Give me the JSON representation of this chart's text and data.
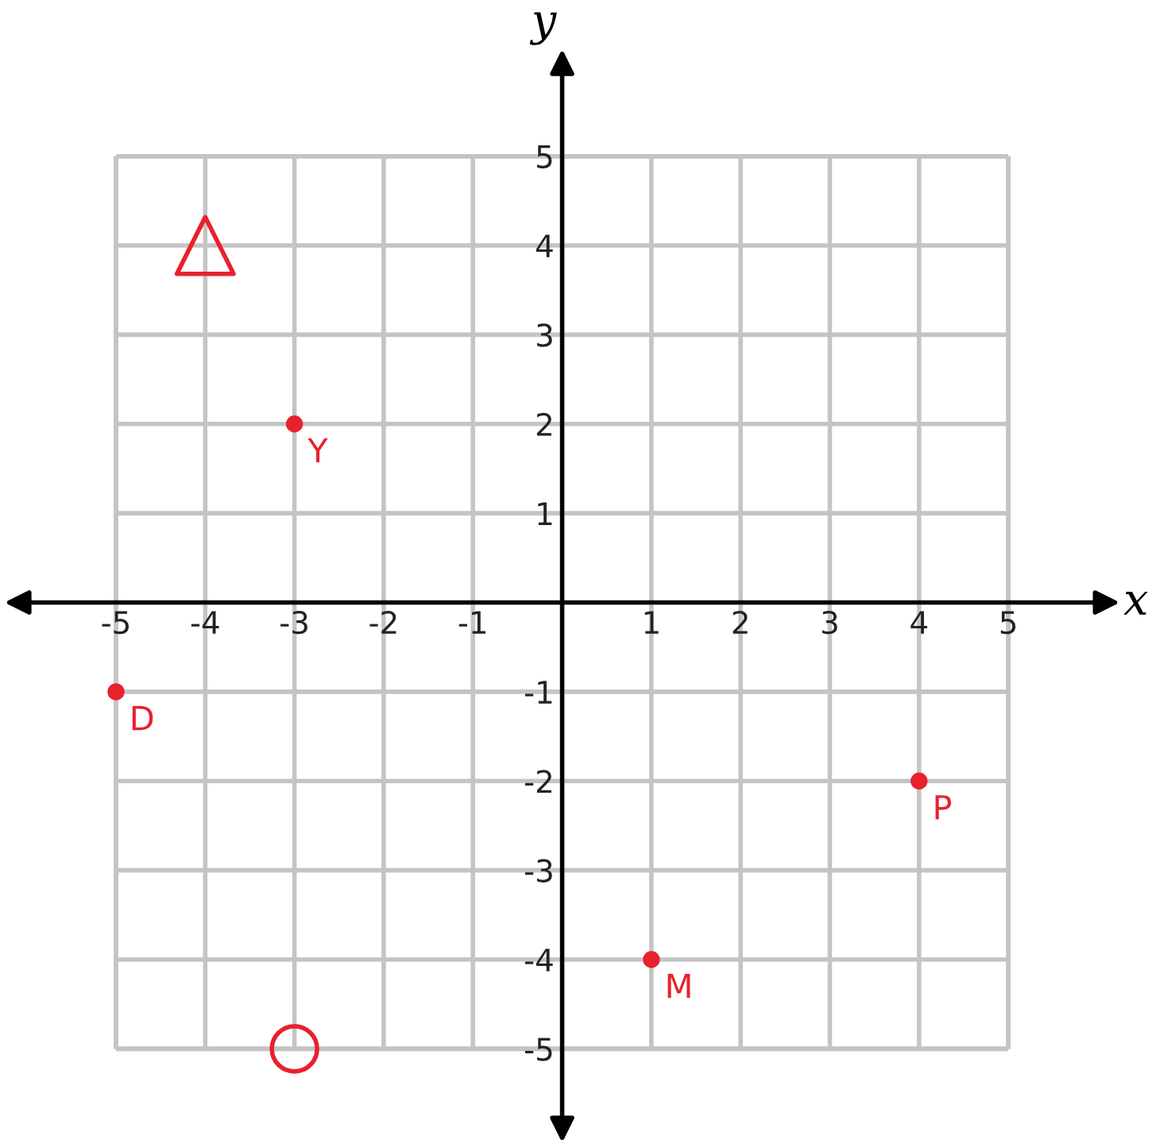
{
  "chart_data": {
    "type": "scatter",
    "xlabel": "x",
    "ylabel": "y",
    "xlim": [
      -6.3,
      6.7
    ],
    "ylim": [
      -6.1,
      6.75
    ],
    "xticks": [
      -5,
      -4,
      -3,
      -2,
      -1,
      1,
      2,
      3,
      4,
      5
    ],
    "yticks": [
      -5,
      -4,
      -3,
      -2,
      -1,
      1,
      2,
      3,
      4,
      5
    ],
    "grid": true,
    "series": [
      {
        "color": "#e8212e",
        "marker": "circle",
        "x": [
          -3,
          -5,
          4,
          1
        ],
        "values": [
          2,
          -1,
          -2,
          -4
        ]
      },
      {
        "type": "bubble",
        "color": "#e8212e",
        "marker": "triangle",
        "x": [
          -4
        ],
        "values": [
          4
        ],
        "sizes": [
          1
        ]
      },
      {
        "type": "bubble",
        "color": "#e8212e",
        "marker": "circle",
        "x": [
          -3
        ],
        "values": [
          -5
        ],
        "sizes": [
          1
        ]
      }
    ],
    "annotations": [
      {
        "text": "Y",
        "x": -3,
        "y": 2
      },
      {
        "text": "D",
        "x": -5,
        "y": -1
      },
      {
        "text": "P",
        "x": 4,
        "y": -2
      },
      {
        "text": "M",
        "x": 1,
        "y": -4
      }
    ]
  }
}
